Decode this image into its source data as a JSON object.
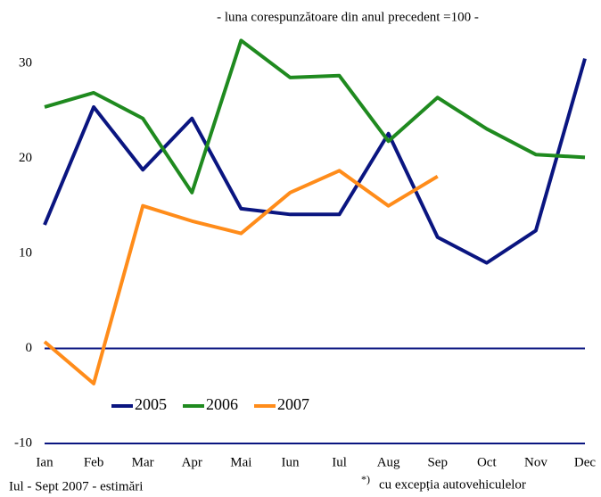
{
  "chart_data": {
    "type": "line",
    "subtitle": "- luna corespunzătoare din anul precedent =100 -",
    "categories": [
      "Ian",
      "Feb",
      "Mar",
      "Apr",
      "Mai",
      "Iun",
      "Iul",
      "Aug",
      "Sep",
      "Oct",
      "Nov",
      "Dec"
    ],
    "series": [
      {
        "name": "2005",
        "color": "#0a1580",
        "values": [
          13.0,
          25.4,
          18.8,
          24.2,
          14.7,
          14.1,
          14.1,
          22.6,
          11.7,
          9.0,
          12.4,
          30.5
        ]
      },
      {
        "name": "2006",
        "color": "#1f8a1f",
        "values": [
          25.4,
          26.9,
          24.2,
          16.4,
          32.4,
          28.5,
          28.7,
          21.8,
          26.4,
          23.1,
          20.4,
          20.1
        ]
      },
      {
        "name": "2007",
        "color": "#ff8c1a",
        "values": [
          0.7,
          -3.7,
          15.0,
          13.4,
          12.1,
          16.4,
          18.7,
          15.0,
          18.1,
          null,
          null,
          null
        ]
      }
    ],
    "ylim": [
      -10,
      33
    ],
    "yticks": [
      -10,
      0,
      10,
      20,
      30
    ],
    "grid": false,
    "legend": "lower left",
    "annotations": [
      "Iul - Sept 2007 - estimări",
      "*)",
      "cu excepția autovehiculelor"
    ]
  }
}
